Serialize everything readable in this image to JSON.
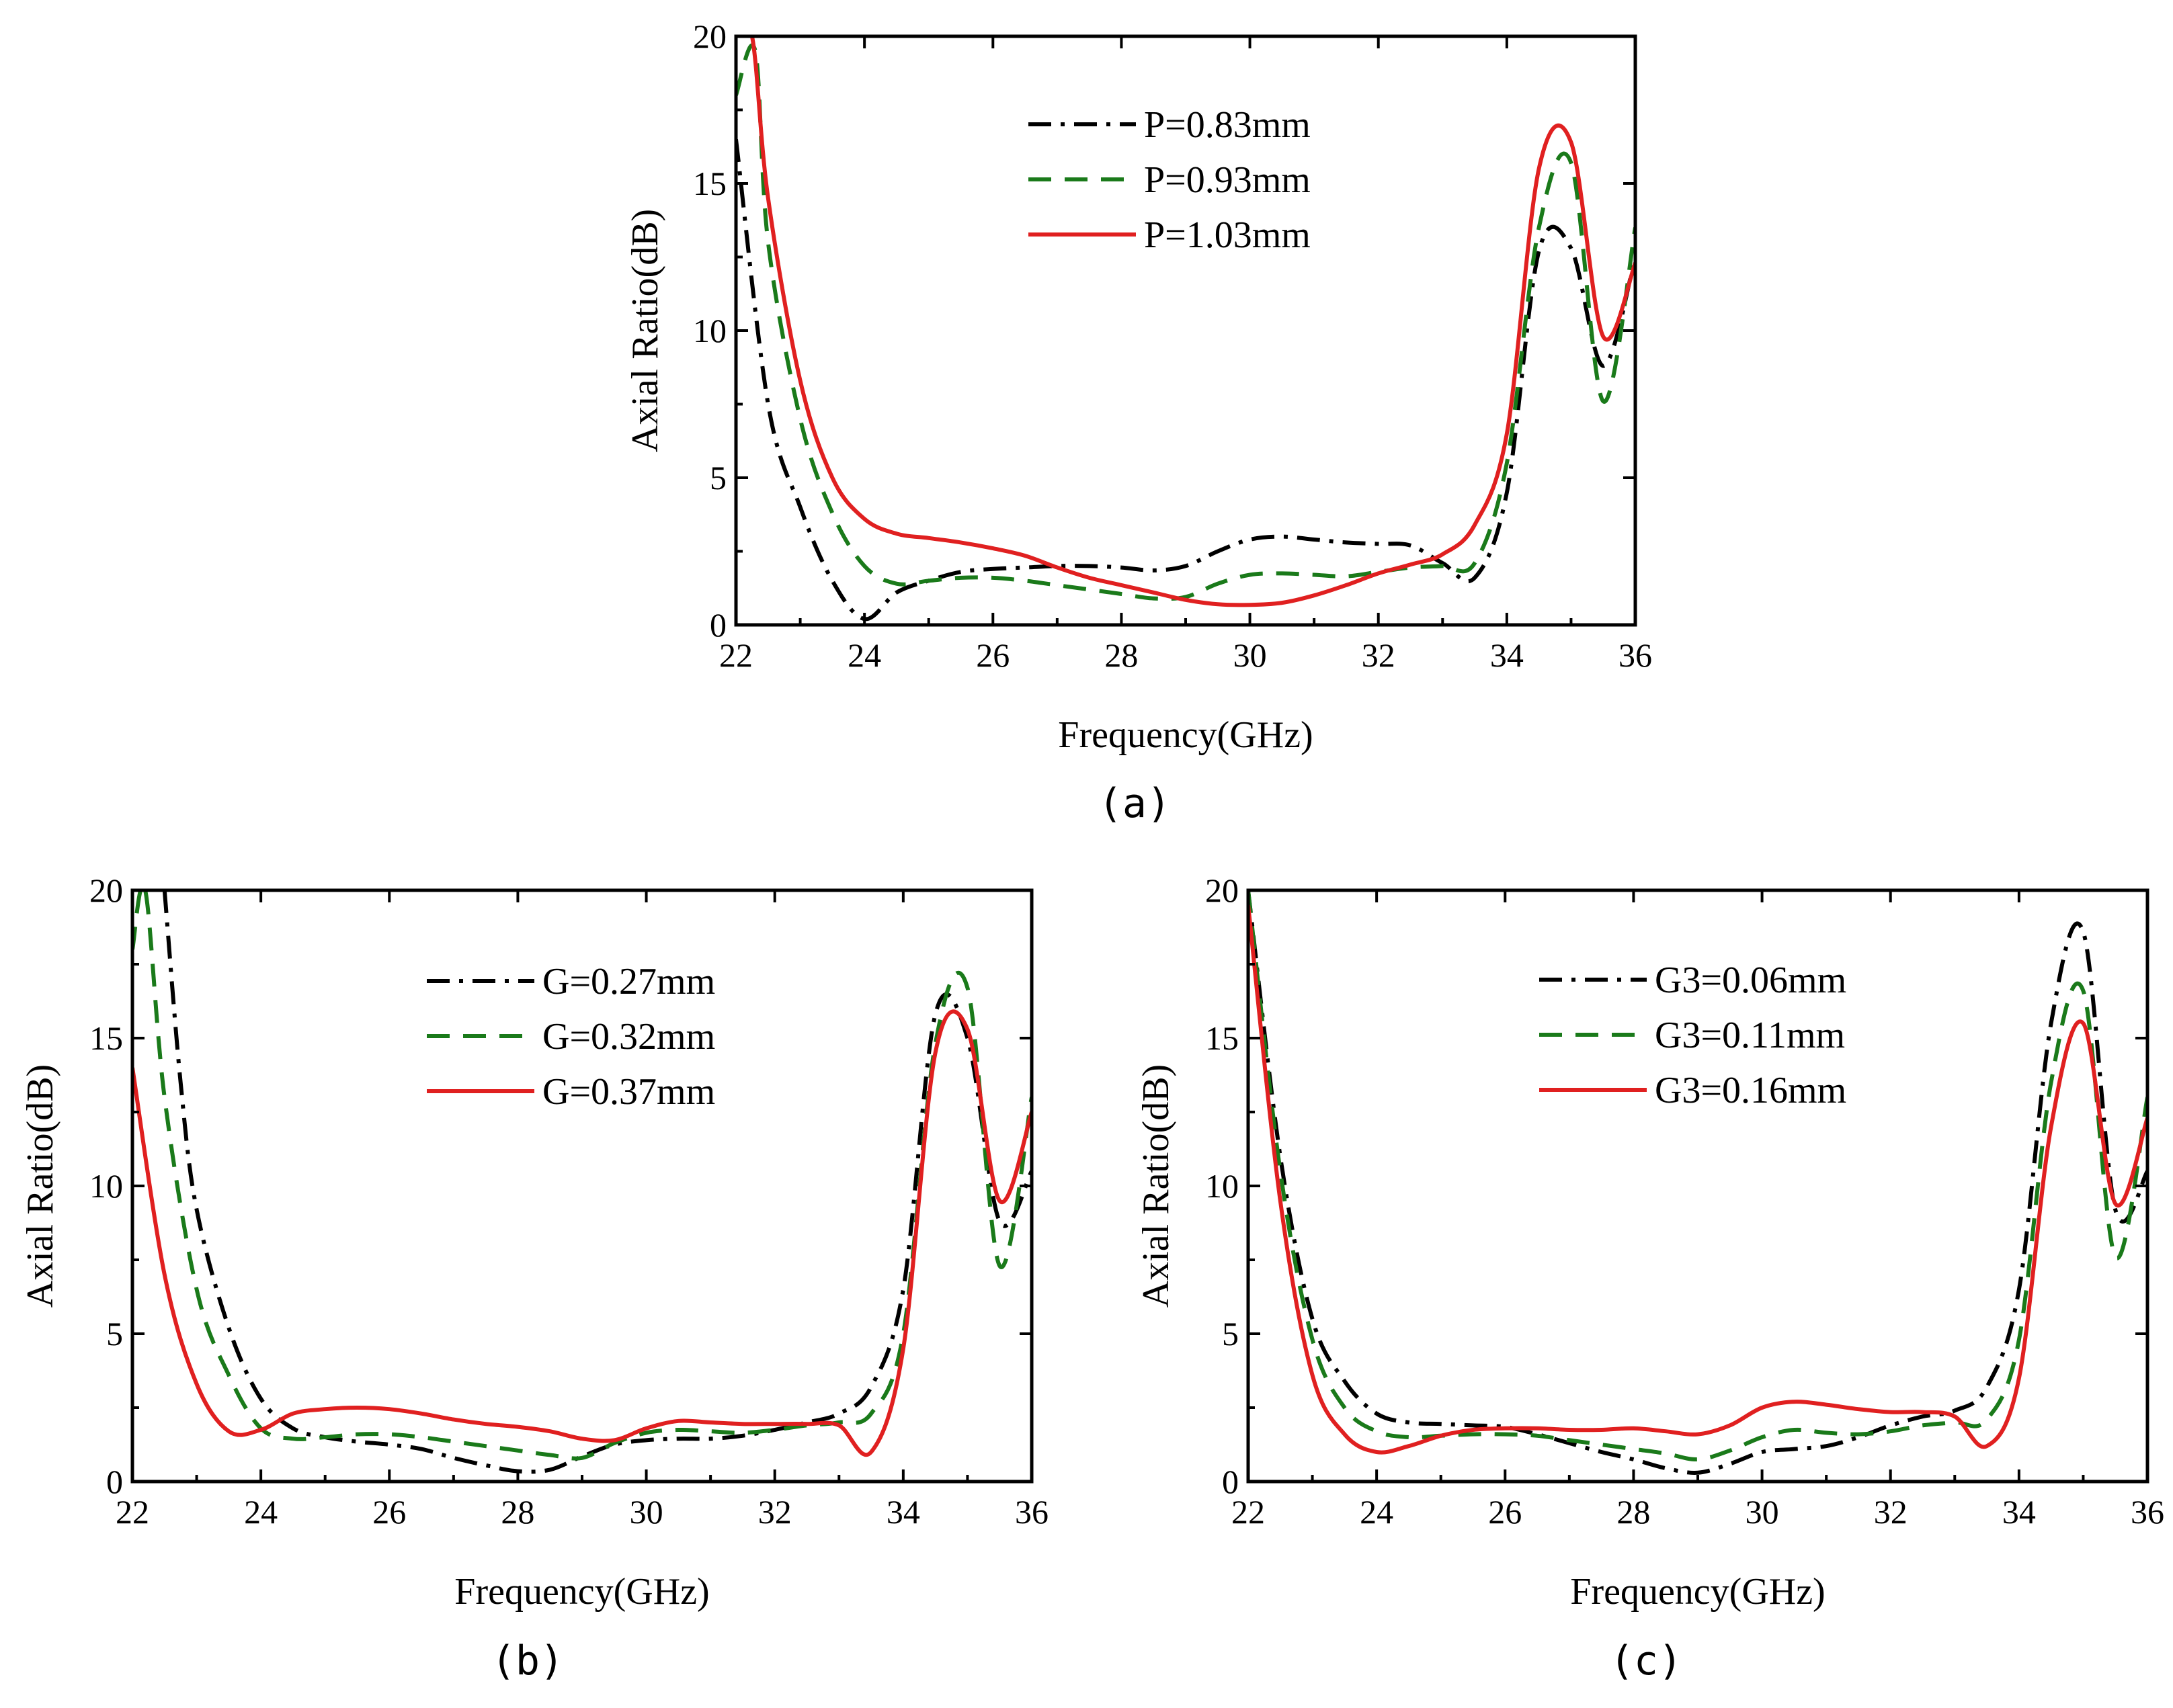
{
  "figure": {
    "captions": [
      "(a)",
      "(b)",
      "(c)"
    ]
  },
  "chart_data": [
    {
      "id": "a",
      "type": "line",
      "caption": "(a)",
      "xlabel": "Frequency(GHz)",
      "ylabel": "Axial Ratio(dB)",
      "xlim": [
        22,
        36
      ],
      "ylim": [
        0,
        20
      ],
      "xticks": [
        22,
        24,
        26,
        28,
        30,
        32,
        34,
        36
      ],
      "yticks": [
        0,
        5,
        10,
        15,
        20
      ],
      "legend_position": "upper-center",
      "series": [
        {
          "name": "P=0.83mm",
          "color": "#000000",
          "dash": "dashdot",
          "x": [
            22,
            22.5,
            23,
            23.5,
            24,
            24.5,
            25,
            25.5,
            26,
            26.5,
            27,
            27.5,
            28,
            28.5,
            29,
            29.5,
            30,
            30.5,
            31,
            31.5,
            32,
            32.5,
            33,
            33.5,
            34,
            34.5,
            35,
            35.5,
            36
          ],
          "y": [
            16.5,
            7.5,
            4,
            1.5,
            0.2,
            1.1,
            1.5,
            1.8,
            1.9,
            1.95,
            2.0,
            2.0,
            1.95,
            1.85,
            2.0,
            2.5,
            2.9,
            3.0,
            2.9,
            2.8,
            2.75,
            2.7,
            2.1,
            1.6,
            4.5,
            12.7,
            12.8,
            8.8,
            12.5
          ]
        },
        {
          "name": "P=0.93mm",
          "color": "#1a7a1a",
          "dash": "dashed",
          "x": [
            22,
            22.3,
            22.5,
            23,
            23.5,
            24,
            24.5,
            25,
            25.5,
            26,
            26.5,
            27,
            27.5,
            28,
            28.5,
            29,
            29.5,
            30,
            30.5,
            31,
            31.5,
            32,
            32.5,
            33,
            33.5,
            34,
            34.5,
            35,
            35.5,
            36
          ],
          "y": [
            18,
            19.5,
            13,
            7,
            3.8,
            2.0,
            1.4,
            1.5,
            1.6,
            1.6,
            1.5,
            1.35,
            1.2,
            1.05,
            0.9,
            0.95,
            1.4,
            1.7,
            1.75,
            1.7,
            1.65,
            1.8,
            1.95,
            2.0,
            2.1,
            5.5,
            13.5,
            15.7,
            7.6,
            13.5
          ]
        },
        {
          "name": "P=1.03mm",
          "color": "#e02020",
          "dash": "solid",
          "x": [
            22,
            22.25,
            22.5,
            23,
            23.5,
            24,
            24.5,
            25,
            25.5,
            26,
            26.5,
            27,
            27.5,
            28,
            28.5,
            29,
            29.5,
            30,
            30.5,
            31,
            31.5,
            32,
            32.5,
            33,
            33.5,
            34,
            34.5,
            35,
            35.5,
            36
          ],
          "y": [
            20,
            20,
            14.5,
            8.3,
            5.0,
            3.6,
            3.1,
            2.95,
            2.8,
            2.6,
            2.35,
            1.95,
            1.6,
            1.35,
            1.1,
            0.85,
            0.7,
            0.68,
            0.75,
            1.0,
            1.35,
            1.75,
            2.05,
            2.4,
            3.4,
            6.5,
            15.5,
            16.4,
            9.8,
            12.3
          ]
        }
      ]
    },
    {
      "id": "b",
      "type": "line",
      "caption": "(b)",
      "xlabel": "Frequency(GHz)",
      "ylabel": "Axial Ratio(dB)",
      "xlim": [
        22,
        36
      ],
      "ylim": [
        0,
        20
      ],
      "xticks": [
        22,
        24,
        26,
        28,
        30,
        32,
        34,
        36
      ],
      "yticks": [
        0,
        5,
        10,
        15,
        20
      ],
      "legend_position": "upper-center",
      "series": [
        {
          "name": "G=0.27mm",
          "color": "#000000",
          "dash": "dashdot",
          "x": [
            22.5,
            22.75,
            23,
            23.5,
            24,
            24.5,
            25,
            25.5,
            26,
            26.5,
            27,
            27.5,
            28,
            28.5,
            29,
            29.5,
            30,
            30.5,
            31,
            31.5,
            32,
            32.5,
            33,
            33.5,
            34,
            34.5,
            35,
            35.5,
            36
          ],
          "y": [
            20,
            13.5,
            9.2,
            5.2,
            2.8,
            1.8,
            1.5,
            1.35,
            1.25,
            1.1,
            0.8,
            0.55,
            0.35,
            0.4,
            0.85,
            1.25,
            1.4,
            1.45,
            1.45,
            1.55,
            1.75,
            2.0,
            2.3,
            3.2,
            6.5,
            15.8,
            15.0,
            8.8,
            10.5
          ]
        },
        {
          "name": "G=0.32mm",
          "color": "#1a7a1a",
          "dash": "dashed",
          "x": [
            22,
            22.2,
            22.5,
            23,
            23.5,
            24,
            24.5,
            25,
            25.5,
            26,
            26.5,
            27,
            27.5,
            28,
            28.5,
            29,
            29.5,
            30,
            30.5,
            31,
            31.5,
            32,
            32.5,
            33,
            33.5,
            34,
            34.5,
            35,
            35.5,
            36
          ],
          "y": [
            18,
            20,
            13,
            6.5,
            3.6,
            1.8,
            1.45,
            1.5,
            1.6,
            1.6,
            1.5,
            1.35,
            1.2,
            1.05,
            0.9,
            0.8,
            1.3,
            1.65,
            1.75,
            1.7,
            1.65,
            1.75,
            1.9,
            2.0,
            2.3,
            5.0,
            14.8,
            16.7,
            7.3,
            13.0
          ]
        },
        {
          "name": "G=0.37mm",
          "color": "#e02020",
          "dash": "solid",
          "x": [
            22,
            22.5,
            23,
            23.5,
            24,
            24.5,
            25,
            25.5,
            26,
            26.5,
            27,
            27.5,
            28,
            28.5,
            29,
            29.5,
            30,
            30.5,
            31,
            31.5,
            32,
            32.5,
            33,
            33.5,
            34,
            34.5,
            35,
            35.5,
            36
          ],
          "y": [
            14,
            7.0,
            3.3,
            1.7,
            1.75,
            2.3,
            2.45,
            2.5,
            2.45,
            2.3,
            2.1,
            1.95,
            1.85,
            1.7,
            1.45,
            1.4,
            1.8,
            2.05,
            2.0,
            1.95,
            1.95,
            1.95,
            1.9,
            1.0,
            4.5,
            14.5,
            15.3,
            9.5,
            12.5
          ]
        }
      ]
    },
    {
      "id": "c",
      "type": "line",
      "caption": "(c)",
      "xlabel": "Frequency(GHz)",
      "ylabel": "Axial Ratio(dB)",
      "xlim": [
        22,
        36
      ],
      "ylim": [
        0,
        20
      ],
      "xticks": [
        22,
        24,
        26,
        28,
        30,
        32,
        34,
        36
      ],
      "yticks": [
        0,
        5,
        10,
        15,
        20
      ],
      "legend_position": "upper-center",
      "series": [
        {
          "name": "G3=0.06mm",
          "color": "#000000",
          "dash": "dashdot",
          "x": [
            22,
            22.5,
            23,
            23.5,
            24,
            24.5,
            25,
            25.5,
            26,
            26.5,
            27,
            27.5,
            28,
            28.5,
            29,
            29.5,
            30,
            30.5,
            31,
            31.5,
            32,
            32.5,
            33,
            33.5,
            34,
            34.5,
            35,
            35.5,
            36
          ],
          "y": [
            20,
            11.0,
            5.5,
            3.4,
            2.3,
            2.0,
            1.95,
            1.9,
            1.85,
            1.6,
            1.3,
            1.0,
            0.75,
            0.45,
            0.3,
            0.6,
            1.0,
            1.1,
            1.2,
            1.5,
            1.9,
            2.2,
            2.4,
            3.2,
            6.5,
            15.5,
            18.6,
            9.2,
            10.5
          ]
        },
        {
          "name": "G3=0.11mm",
          "color": "#1a7a1a",
          "dash": "dashed",
          "x": [
            22,
            22.5,
            23,
            23.5,
            24,
            24.5,
            25,
            25.5,
            26,
            26.5,
            27,
            27.5,
            28,
            28.5,
            29,
            29.5,
            30,
            30.5,
            31,
            31.5,
            32,
            32.5,
            33,
            33.5,
            34,
            34.5,
            35,
            35.5,
            36
          ],
          "y": [
            20,
            10.5,
            4.8,
            2.5,
            1.7,
            1.5,
            1.55,
            1.6,
            1.6,
            1.55,
            1.4,
            1.25,
            1.1,
            0.95,
            0.75,
            1.05,
            1.5,
            1.75,
            1.65,
            1.6,
            1.7,
            1.9,
            2.0,
            2.1,
            4.8,
            13.5,
            16.6,
            7.6,
            13.0
          ]
        },
        {
          "name": "G3=0.16mm",
          "color": "#e02020",
          "dash": "solid",
          "x": [
            22,
            22.5,
            23,
            23.5,
            24,
            24.5,
            25,
            25.5,
            26,
            26.5,
            27,
            27.5,
            28,
            28.5,
            29,
            29.5,
            30,
            30.5,
            31,
            31.5,
            32,
            32.5,
            33,
            33.5,
            34,
            34.5,
            35,
            35.5,
            36
          ],
          "y": [
            19.5,
            9.5,
            3.6,
            1.6,
            1.0,
            1.2,
            1.55,
            1.75,
            1.8,
            1.8,
            1.75,
            1.75,
            1.8,
            1.7,
            1.6,
            1.9,
            2.5,
            2.7,
            2.6,
            2.45,
            2.35,
            2.35,
            2.2,
            1.2,
            3.5,
            12.0,
            15.5,
            9.4,
            12.3
          ]
        }
      ]
    }
  ]
}
